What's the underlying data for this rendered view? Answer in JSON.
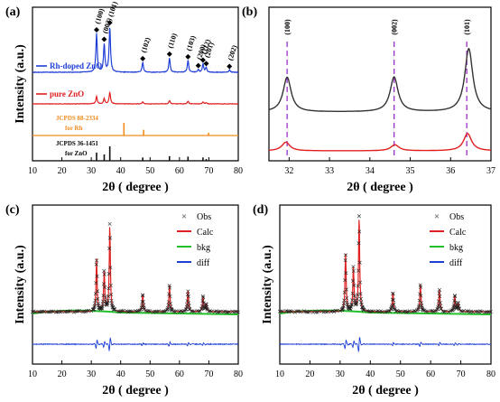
{
  "colors": {
    "rh": "#1f3fd6",
    "pure": "#e02020",
    "jcpds_rh": "#f08c1e",
    "jcpds_zno": "#111111",
    "dark_trace": "#333333",
    "calc": "#e02020",
    "bkg": "#22c02a",
    "diff": "#1f3fd6",
    "dash": "#9b30c8"
  },
  "chart_data": [
    {
      "panel": "(a)",
      "type": "line",
      "xlabel": "2θ ( degree )",
      "ylabel": "Intensity (a.u.)",
      "xlim": [
        10,
        80
      ],
      "xticks": [
        10,
        20,
        30,
        40,
        50,
        60,
        70,
        80
      ],
      "series": [
        {
          "name": "Rh-doped ZnO",
          "peaks": [
            [
              31.8,
              0.85
            ],
            [
              34.4,
              0.62
            ],
            [
              36.3,
              1.0
            ],
            [
              47.5,
              0.22
            ],
            [
              56.6,
              0.32
            ],
            [
              62.9,
              0.26
            ],
            [
              66.4,
              0.06
            ],
            [
              68.0,
              0.18
            ],
            [
              69.1,
              0.1
            ],
            [
              77.0,
              0.05
            ]
          ]
        },
        {
          "name": "pure ZnO",
          "peaks": [
            [
              31.8,
              0.45
            ],
            [
              34.4,
              0.33
            ],
            [
              36.3,
              0.72
            ],
            [
              47.5,
              0.12
            ],
            [
              56.6,
              0.2
            ],
            [
              62.9,
              0.16
            ],
            [
              68.0,
              0.12
            ],
            [
              69.1,
              0.06
            ]
          ]
        },
        {
          "name": "JCPDS 88-2334",
          "note": "for Rh",
          "sticks": [
            [
              41.1,
              1.0
            ],
            [
              47.8,
              0.45
            ],
            [
              69.9,
              0.22
            ]
          ]
        },
        {
          "name": "JCPDS 36-1451",
          "note": "for ZnO",
          "sticks": [
            [
              31.8,
              0.57
            ],
            [
              34.4,
              0.44
            ],
            [
              36.3,
              1.0
            ],
            [
              47.5,
              0.23
            ],
            [
              56.6,
              0.32
            ],
            [
              62.9,
              0.29
            ],
            [
              68.0,
              0.23
            ],
            [
              69.1,
              0.12
            ]
          ]
        }
      ],
      "peak_labels": [
        {
          "x": 31.8,
          "label": "(100)"
        },
        {
          "x": 34.4,
          "label": "(002)"
        },
        {
          "x": 36.3,
          "label": "(101)"
        },
        {
          "x": 47.5,
          "label": "(102)"
        },
        {
          "x": 56.6,
          "label": "(110)"
        },
        {
          "x": 62.9,
          "label": "(103)"
        },
        {
          "x": 66.4,
          "label": "(200)"
        },
        {
          "x": 68.0,
          "label": "(112)"
        },
        {
          "x": 69.1,
          "label": "(201)"
        },
        {
          "x": 77.0,
          "label": "(202)"
        }
      ],
      "texts": {
        "rh": "Rh-doped ZnO",
        "pure": "pure ZnO",
        "jrh_1": "JCPDS 88-2334",
        "jrh_2": "for Rh",
        "jzn_1": "JCPDS 36-1451",
        "jzn_2": "for ZnO"
      }
    },
    {
      "panel": "(b)",
      "type": "line",
      "xlabel": "2θ ( degree )",
      "xlim": [
        31.5,
        37
      ],
      "xticks": [
        32,
        33,
        34,
        35,
        36,
        37
      ],
      "series": [
        {
          "peaks": [
            [
              31.95,
              0.55
            ],
            [
              34.6,
              0.55
            ],
            [
              36.45,
              1.0
            ]
          ],
          "color": "dark"
        },
        {
          "peaks": [
            [
              31.92,
              0.2
            ],
            [
              34.62,
              0.14
            ],
            [
              36.42,
              0.4
            ]
          ],
          "color": "red"
        }
      ],
      "dashed_lines": [
        31.95,
        34.6,
        36.4
      ],
      "peak_labels": [
        {
          "x": 31.95,
          "label": "(100)"
        },
        {
          "x": 34.6,
          "label": "(002)"
        },
        {
          "x": 36.4,
          "label": "(101)"
        }
      ]
    },
    {
      "panel": "(c)",
      "type": "line",
      "xlabel": "2θ ( degree )",
      "ylabel": "Intensity (a.u.)",
      "xlim": [
        10,
        80
      ],
      "xticks": [
        10,
        20,
        30,
        40,
        50,
        60,
        70,
        80
      ],
      "legend": [
        "Obs",
        "Calc",
        "bkg",
        "diff"
      ],
      "legend_position": "top-right",
      "peaks": [
        [
          31.8,
          0.55
        ],
        [
          34.4,
          0.42
        ],
        [
          36.3,
          0.92
        ],
        [
          47.5,
          0.18
        ],
        [
          56.6,
          0.28
        ],
        [
          62.9,
          0.22
        ],
        [
          68.0,
          0.16
        ],
        [
          69.1,
          0.08
        ]
      ]
    },
    {
      "panel": "(d)",
      "type": "line",
      "xlabel": "2θ ( degree )",
      "ylabel": "Intensity (a.u.)",
      "xlim": [
        10,
        80
      ],
      "xticks": [
        10,
        20,
        30,
        40,
        50,
        60,
        70,
        80
      ],
      "legend": [
        "Obs",
        "Calc",
        "bkg",
        "diff"
      ],
      "legend_position": "top-right",
      "peaks": [
        [
          31.8,
          0.6
        ],
        [
          34.4,
          0.46
        ],
        [
          36.3,
          1.0
        ],
        [
          47.5,
          0.2
        ],
        [
          56.6,
          0.29
        ],
        [
          62.9,
          0.23
        ],
        [
          68.0,
          0.17
        ],
        [
          69.1,
          0.09
        ]
      ]
    }
  ]
}
